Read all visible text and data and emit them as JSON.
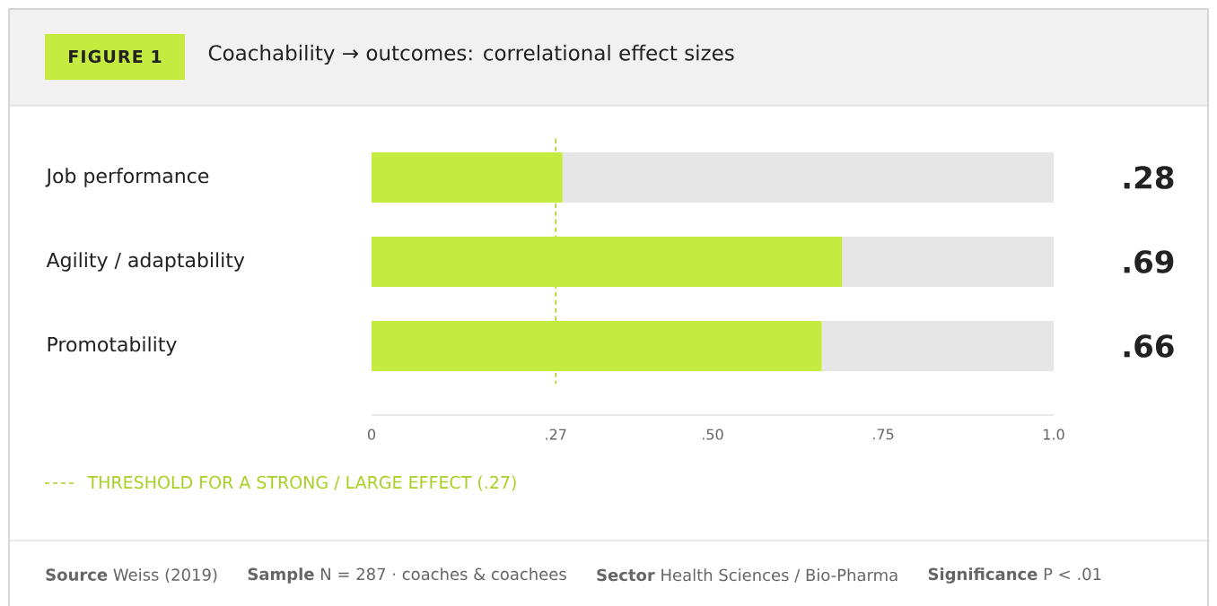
{
  "chart_data": {
    "type": "bar",
    "orientation": "horizontal",
    "stacked": true,
    "title": "Coachability → outcomes: correlational effect sizes",
    "categories": [
      "Job performance",
      "Agility / adaptability",
      "Promotability"
    ],
    "series": [
      {
        "color": "#c5eb41",
        "values": [
          0.28,
          0.69,
          0.66
        ],
        "value_labels": [
          ".28",
          ".69",
          ".66"
        ]
      },
      {
        "color": "#e6e6e6",
        "values": [
          0.72,
          0.31,
          0.34
        ]
      }
    ],
    "xlim": [
      0,
      1
    ],
    "xticks": [
      0,
      {
        "value": 0.27,
        "label": ".27"
      },
      {
        "value": 0.5,
        "label": ".50"
      },
      {
        "value": 0.75,
        "label": ".75"
      },
      {
        "value": 1,
        "label": "1.0"
      }
    ],
    "ref_lines": [
      {
        "axis": "x",
        "value": 0.27,
        "label": "THRESHOLD FOR A STRONG / LARGE EFFECT (.27)",
        "color": "#a8cf24",
        "line_style": "dashed"
      }
    ],
    "annotations": [
      "FIGURE 1",
      "**Source** Weiss (2019)",
      "**Sample** N = 287 · coaches & coachees",
      "**Sector** Health Sciences / Bio-Pharma",
      "**Significance** P < .01"
    ]
  }
}
